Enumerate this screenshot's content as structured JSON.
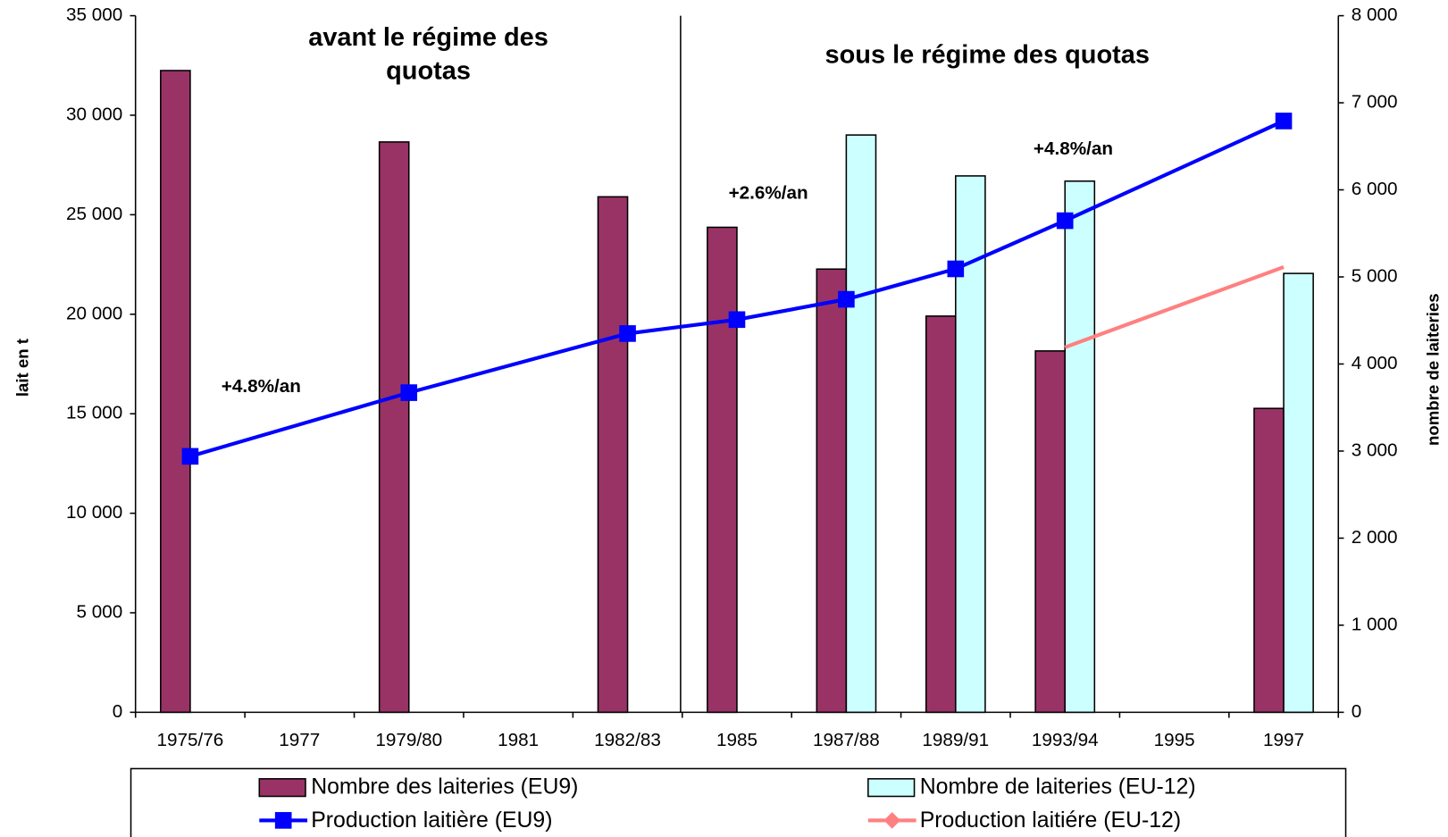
{
  "chart_data": {
    "type": "bar",
    "categories": [
      "1975/76",
      "1977",
      "1979/80",
      "1981",
      "1982/83",
      "1985",
      "1987/88",
      "1989/91",
      "1993/94",
      "1995",
      "1997"
    ],
    "series": [
      {
        "name": "Nombre des laiteries (EU9)",
        "type": "bar",
        "axis": "y2",
        "color": "#993366",
        "values": [
          7370,
          null,
          6550,
          null,
          5920,
          5570,
          5090,
          4550,
          4150,
          null,
          3490
        ]
      },
      {
        "name": "Nombre de laiteries (EU-12)",
        "type": "bar",
        "axis": "y2",
        "color": "#ccffff",
        "values": [
          null,
          null,
          null,
          null,
          null,
          null,
          6630,
          6160,
          6100,
          null,
          5040
        ]
      },
      {
        "name": "Production laitière (EU9)",
        "type": "line",
        "color": "#0000ff",
        "x": [
          "1975/76",
          "1979/80",
          "1982/83",
          "1985",
          "1987/88",
          "1989/91",
          "1993/94",
          "1997"
        ],
        "values": [
          12860,
          16060,
          19030,
          19730,
          20750,
          22280,
          24700,
          29710
        ]
      },
      {
        "name": "Production laitiére (EU-12)",
        "type": "line",
        "color": "#ff8080",
        "x": [
          "1993/94",
          "1997"
        ],
        "values": [
          18340,
          22370
        ]
      }
    ],
    "ylabel": "lait en t",
    "y2label": "nombre de laiteries",
    "ylim": [
      0,
      35000
    ],
    "yticks": [
      0,
      {
        "value": 5000,
        "label": "5 000"
      },
      {
        "value": 10000,
        "label": "10 000"
      },
      {
        "value": 15000,
        "label": "15 000"
      },
      {
        "value": 20000,
        "label": "20 000"
      },
      {
        "value": 25000,
        "label": "25 000"
      },
      {
        "value": 30000,
        "label": "30 000"
      },
      {
        "value": 35000,
        "label": "35 000"
      }
    ],
    "y2lim": [
      0,
      8000
    ],
    "y2ticks": [
      0,
      {
        "value": 1000,
        "label": "1 000"
      },
      {
        "value": 2000,
        "label": "2 000"
      },
      {
        "value": 3000,
        "label": "3 000"
      },
      {
        "value": 4000,
        "label": "4 000"
      },
      {
        "value": 5000,
        "label": "5 000"
      },
      {
        "value": 6000,
        "label": "6 000"
      },
      {
        "value": 7000,
        "label": "7 000"
      },
      {
        "value": 8000,
        "label": "8 000"
      }
    ],
    "annotations": [
      "avant le régime des",
      "quotas",
      "sous le régime des quotas",
      "+4.8%/an",
      "+2.6%/an",
      "+4.8%/an"
    ],
    "grid": false
  }
}
